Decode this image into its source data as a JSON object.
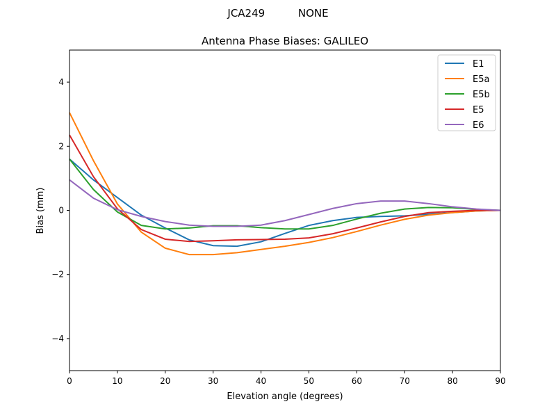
{
  "suptitle": "JCA249          NONE",
  "chart_data": {
    "type": "line",
    "title": "Antenna Phase Biases: GALILEO",
    "xlabel": "Elevation angle (degrees)",
    "ylabel": "Bias (mm)",
    "xlim": [
      0,
      90
    ],
    "ylim": [
      -5,
      5
    ],
    "xticks": [
      0,
      10,
      20,
      30,
      40,
      50,
      60,
      70,
      80,
      90
    ],
    "yticks": [
      -4,
      -2,
      0,
      2,
      4
    ],
    "ytick_labels": [
      "−4",
      "−2",
      "0",
      "2",
      "4"
    ],
    "grid": false,
    "legend_position": "top-right",
    "x": [
      0,
      5,
      10,
      15,
      20,
      25,
      30,
      35,
      40,
      45,
      50,
      55,
      60,
      65,
      70,
      75,
      80,
      85,
      90
    ],
    "series": [
      {
        "name": "E1",
        "color": "#1f77b4",
        "values": [
          1.6,
          0.95,
          0.4,
          -0.15,
          -0.55,
          -0.92,
          -1.1,
          -1.12,
          -0.98,
          -0.72,
          -0.47,
          -0.32,
          -0.22,
          -0.19,
          -0.17,
          -0.12,
          -0.07,
          -0.02,
          0
        ]
      },
      {
        "name": "E5a",
        "color": "#ff7f0e",
        "values": [
          3.05,
          1.55,
          0.2,
          -0.68,
          -1.18,
          -1.38,
          -1.38,
          -1.32,
          -1.22,
          -1.12,
          -1.0,
          -0.85,
          -0.66,
          -0.46,
          -0.28,
          -0.15,
          -0.07,
          -0.02,
          0
        ]
      },
      {
        "name": "E5b",
        "color": "#2ca02c",
        "values": [
          1.6,
          0.65,
          -0.05,
          -0.47,
          -0.58,
          -0.55,
          -0.48,
          -0.48,
          -0.54,
          -0.58,
          -0.58,
          -0.47,
          -0.27,
          -0.09,
          0.04,
          0.09,
          0.08,
          0.03,
          0
        ]
      },
      {
        "name": "E5",
        "color": "#d62728",
        "values": [
          2.35,
          1.05,
          0.05,
          -0.6,
          -0.9,
          -0.97,
          -0.95,
          -0.92,
          -0.91,
          -0.9,
          -0.86,
          -0.73,
          -0.55,
          -0.36,
          -0.19,
          -0.07,
          -0.03,
          0.0,
          0
        ]
      },
      {
        "name": "E6",
        "color": "#9467bd",
        "values": [
          0.95,
          0.38,
          0.02,
          -0.19,
          -0.35,
          -0.46,
          -0.5,
          -0.5,
          -0.46,
          -0.32,
          -0.13,
          0.06,
          0.21,
          0.29,
          0.29,
          0.21,
          0.11,
          0.04,
          0
        ]
      }
    ]
  }
}
